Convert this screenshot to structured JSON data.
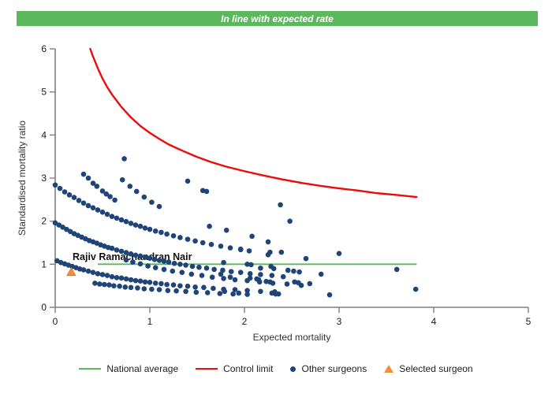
{
  "banner": {
    "text": "In line with expected rate",
    "bg_color": "#5cb85c",
    "text_color": "#ffffff"
  },
  "chart_data": {
    "type": "scatter",
    "xlabel": "Expected mortality",
    "ylabel": "Standardised mortality ratio",
    "xlim": [
      0,
      5
    ],
    "ylim": [
      0,
      6
    ],
    "xticks": [
      0,
      1,
      2,
      3,
      4,
      5
    ],
    "yticks": [
      0,
      1,
      2,
      3,
      4,
      5,
      6
    ],
    "grid": "off",
    "axis_color": "#7f7f7f",
    "tick_label_color": "#1a1a1a",
    "national_average": {
      "label": "National average",
      "color": "#5cb85c",
      "y": 1,
      "x_start": 0.45,
      "x_end": 3.82
    },
    "control_limit": {
      "label": "Control limit",
      "color": "#ee0a0a",
      "points": [
        [
          0.37,
          6.0
        ],
        [
          0.4,
          5.82
        ],
        [
          0.45,
          5.55
        ],
        [
          0.5,
          5.31
        ],
        [
          0.55,
          5.11
        ],
        [
          0.6,
          4.94
        ],
        [
          0.7,
          4.65
        ],
        [
          0.8,
          4.41
        ],
        [
          0.9,
          4.21
        ],
        [
          1.0,
          4.05
        ],
        [
          1.1,
          3.91
        ],
        [
          1.2,
          3.78
        ],
        [
          1.35,
          3.63
        ],
        [
          1.5,
          3.49
        ],
        [
          1.65,
          3.37
        ],
        [
          1.8,
          3.27
        ],
        [
          2.0,
          3.16
        ],
        [
          2.2,
          3.06
        ],
        [
          2.4,
          2.97
        ],
        [
          2.6,
          2.89
        ],
        [
          2.8,
          2.82
        ],
        [
          3.0,
          2.76
        ],
        [
          3.2,
          2.71
        ],
        [
          3.4,
          2.65
        ],
        [
          3.6,
          2.61
        ],
        [
          3.82,
          2.56
        ]
      ]
    },
    "other_surgeons": {
      "label": "Other surgeons",
      "color": "#1f4477",
      "bands": [
        {
          "name": "band-1",
          "points": [
            [
              0.0,
              2.84
            ],
            [
              0.05,
              2.76
            ],
            [
              0.1,
              2.68
            ],
            [
              0.15,
              2.61
            ],
            [
              0.2,
              2.55
            ],
            [
              0.25,
              2.48
            ],
            [
              0.3,
              2.42
            ],
            [
              0.35,
              2.36
            ],
            [
              0.4,
              2.31
            ],
            [
              0.45,
              2.26
            ],
            [
              0.5,
              2.21
            ],
            [
              0.55,
              2.16
            ],
            [
              0.6,
              2.11
            ],
            [
              0.65,
              2.07
            ],
            [
              0.7,
              2.03
            ],
            [
              0.75,
              1.99
            ],
            [
              0.8,
              1.95
            ],
            [
              0.85,
              1.91
            ],
            [
              0.9,
              1.88
            ],
            [
              0.95,
              1.84
            ],
            [
              1.0,
              1.81
            ],
            [
              1.06,
              1.77
            ],
            [
              1.12,
              1.74
            ],
            [
              1.18,
              1.7
            ],
            [
              1.25,
              1.66
            ],
            [
              1.32,
              1.62
            ],
            [
              1.4,
              1.58
            ],
            [
              1.48,
              1.54
            ],
            [
              1.56,
              1.5
            ],
            [
              1.65,
              1.46
            ],
            [
              1.75,
              1.42
            ],
            [
              1.85,
              1.38
            ],
            [
              1.96,
              1.34
            ],
            [
              2.05,
              1.31
            ]
          ]
        },
        {
          "name": "band-2",
          "points": [
            [
              0.0,
              1.96
            ],
            [
              0.04,
              1.91
            ],
            [
              0.08,
              1.86
            ],
            [
              0.12,
              1.81
            ],
            [
              0.16,
              1.76
            ],
            [
              0.2,
              1.71
            ],
            [
              0.24,
              1.67
            ],
            [
              0.28,
              1.63
            ],
            [
              0.32,
              1.59
            ],
            [
              0.36,
              1.55
            ],
            [
              0.4,
              1.52
            ],
            [
              0.44,
              1.49
            ],
            [
              0.48,
              1.45
            ],
            [
              0.52,
              1.42
            ],
            [
              0.56,
              1.39
            ],
            [
              0.6,
              1.37
            ],
            [
              0.65,
              1.33
            ],
            [
              0.7,
              1.3
            ],
            [
              0.75,
              1.27
            ],
            [
              0.8,
              1.24
            ],
            [
              0.85,
              1.21
            ],
            [
              0.9,
              1.19
            ],
            [
              0.95,
              1.16
            ],
            [
              1.0,
              1.14
            ],
            [
              1.05,
              1.11
            ],
            [
              1.1,
              1.09
            ],
            [
              1.15,
              1.07
            ],
            [
              1.2,
              1.05
            ],
            [
              1.26,
              1.02
            ],
            [
              1.32,
              1.0
            ],
            [
              1.38,
              0.98
            ],
            [
              1.45,
              0.95
            ],
            [
              1.52,
              0.93
            ],
            [
              1.6,
              0.91
            ],
            [
              1.68,
              0.88
            ],
            [
              1.77,
              0.86
            ],
            [
              1.86,
              0.83
            ],
            [
              1.96,
              0.81
            ],
            [
              2.06,
              0.78
            ],
            [
              2.17,
              0.76
            ],
            [
              2.29,
              0.74
            ],
            [
              2.41,
              0.71
            ]
          ]
        },
        {
          "name": "band-3",
          "points": [
            [
              0.75,
              1.1
            ],
            [
              0.82,
              1.05
            ],
            [
              0.9,
              1.01
            ],
            [
              0.98,
              0.96
            ],
            [
              1.06,
              0.92
            ],
            [
              1.15,
              0.88
            ],
            [
              1.24,
              0.84
            ],
            [
              1.34,
              0.81
            ],
            [
              1.44,
              0.77
            ],
            [
              1.55,
              0.74
            ],
            [
              1.66,
              0.7
            ],
            [
              1.78,
              0.67
            ],
            [
              1.9,
              0.64
            ],
            [
              2.03,
              0.62
            ],
            [
              2.16,
              0.59
            ],
            [
              2.3,
              0.56
            ],
            [
              2.45,
              0.54
            ],
            [
              2.6,
              0.51
            ]
          ]
        },
        {
          "name": "band-4",
          "points": [
            [
              0.02,
              1.08
            ],
            [
              0.06,
              1.04
            ],
            [
              0.1,
              1.01
            ],
            [
              0.14,
              0.98
            ],
            [
              0.18,
              0.95
            ],
            [
              0.22,
              0.92
            ],
            [
              0.26,
              0.89
            ],
            [
              0.3,
              0.87
            ],
            [
              0.35,
              0.84
            ],
            [
              0.4,
              0.81
            ],
            [
              0.45,
              0.78
            ],
            [
              0.5,
              0.76
            ],
            [
              0.55,
              0.74
            ],
            [
              0.6,
              0.71
            ],
            [
              0.65,
              0.69
            ],
            [
              0.7,
              0.68
            ],
            [
              0.75,
              0.66
            ],
            [
              0.8,
              0.64
            ],
            [
              0.85,
              0.62
            ],
            [
              0.9,
              0.61
            ],
            [
              0.95,
              0.59
            ],
            [
              1.0,
              0.58
            ],
            [
              1.06,
              0.56
            ],
            [
              1.12,
              0.55
            ],
            [
              1.18,
              0.53
            ],
            [
              1.25,
              0.52
            ],
            [
              1.32,
              0.5
            ],
            [
              1.4,
              0.49
            ],
            [
              1.48,
              0.47
            ],
            [
              1.57,
              0.46
            ],
            [
              1.67,
              0.44
            ],
            [
              1.78,
              0.42
            ],
            [
              1.9,
              0.41
            ],
            [
              2.03,
              0.39
            ],
            [
              2.17,
              0.37
            ],
            [
              2.32,
              0.36
            ]
          ]
        },
        {
          "name": "band-5",
          "points": [
            [
              0.42,
              0.56
            ],
            [
              0.47,
              0.54
            ],
            [
              0.52,
              0.53
            ],
            [
              0.57,
              0.52
            ],
            [
              0.62,
              0.5
            ],
            [
              0.68,
              0.49
            ],
            [
              0.74,
              0.47
            ],
            [
              0.8,
              0.46
            ],
            [
              0.87,
              0.45
            ],
            [
              0.94,
              0.43
            ],
            [
              1.02,
              0.42
            ],
            [
              1.1,
              0.41
            ],
            [
              1.19,
              0.39
            ],
            [
              1.28,
              0.38
            ],
            [
              1.38,
              0.37
            ],
            [
              1.49,
              0.35
            ],
            [
              1.61,
              0.34
            ],
            [
              1.74,
              0.32
            ],
            [
              1.88,
              0.31
            ],
            [
              2.03,
              0.3
            ]
          ]
        },
        {
          "name": "band-6",
          "points": [
            [
              0.3,
              3.09
            ],
            [
              0.35,
              3.0
            ],
            [
              0.4,
              2.88
            ],
            [
              0.44,
              2.81
            ],
            [
              0.5,
              2.7
            ],
            [
              0.54,
              2.63
            ],
            [
              0.58,
              2.57
            ],
            [
              0.63,
              2.49
            ]
          ]
        },
        {
          "name": "band-7",
          "points": [
            [
              0.71,
              2.96
            ],
            [
              0.79,
              2.81
            ],
            [
              0.86,
              2.69
            ],
            [
              0.94,
              2.56
            ],
            [
              1.02,
              2.44
            ],
            [
              1.1,
              2.34
            ]
          ]
        }
      ],
      "scattered": [
        [
          0.73,
          3.45
        ],
        [
          1.4,
          2.93
        ],
        [
          1.56,
          2.71
        ],
        [
          1.6,
          2.69
        ],
        [
          2.38,
          2.38
        ],
        [
          2.48,
          2.0
        ],
        [
          1.63,
          1.88
        ],
        [
          1.81,
          1.79
        ],
        [
          2.08,
          1.65
        ],
        [
          2.25,
          1.52
        ],
        [
          1.96,
          1.35
        ],
        [
          2.27,
          1.28
        ],
        [
          2.39,
          1.28
        ],
        [
          3.0,
          1.25
        ],
        [
          2.65,
          1.13
        ],
        [
          2.25,
          1.22
        ],
        [
          1.78,
          1.04
        ],
        [
          2.03,
          1.0
        ],
        [
          2.07,
          0.99
        ],
        [
          2.17,
          0.91
        ],
        [
          2.28,
          0.95
        ],
        [
          2.31,
          0.9
        ],
        [
          2.46,
          0.86
        ],
        [
          2.52,
          0.84
        ],
        [
          2.58,
          0.82
        ],
        [
          2.81,
          0.77
        ],
        [
          3.61,
          0.88
        ],
        [
          1.75,
          0.77
        ],
        [
          1.85,
          0.7
        ],
        [
          2.06,
          0.68
        ],
        [
          2.13,
          0.66
        ],
        [
          2.15,
          0.64
        ],
        [
          2.23,
          0.6
        ],
        [
          2.27,
          0.59
        ],
        [
          2.53,
          0.59
        ],
        [
          2.57,
          0.57
        ],
        [
          2.69,
          0.55
        ],
        [
          1.79,
          0.37
        ],
        [
          1.94,
          0.33
        ],
        [
          2.29,
          0.33
        ],
        [
          2.33,
          0.31
        ],
        [
          2.36,
          0.31
        ],
        [
          2.9,
          0.29
        ],
        [
          3.81,
          0.42
        ]
      ]
    },
    "selected_surgeon": {
      "label": "Selected surgeon",
      "color": "#f28f3c",
      "x": 0.17,
      "y": 0.82,
      "annotation": "Rajiv Ramachandran Nair",
      "annotation_color": "#111111"
    }
  },
  "legend": {
    "items": [
      {
        "label": "National average",
        "marker": "line",
        "color": "#5cb85c"
      },
      {
        "label": "Control limit",
        "marker": "line",
        "color": "#ee0a0a"
      },
      {
        "label": "Other surgeons",
        "marker": "dot",
        "color": "#1f4477"
      },
      {
        "label": "Selected surgeon",
        "marker": "triangle",
        "color": "#f28f3c"
      }
    ]
  }
}
